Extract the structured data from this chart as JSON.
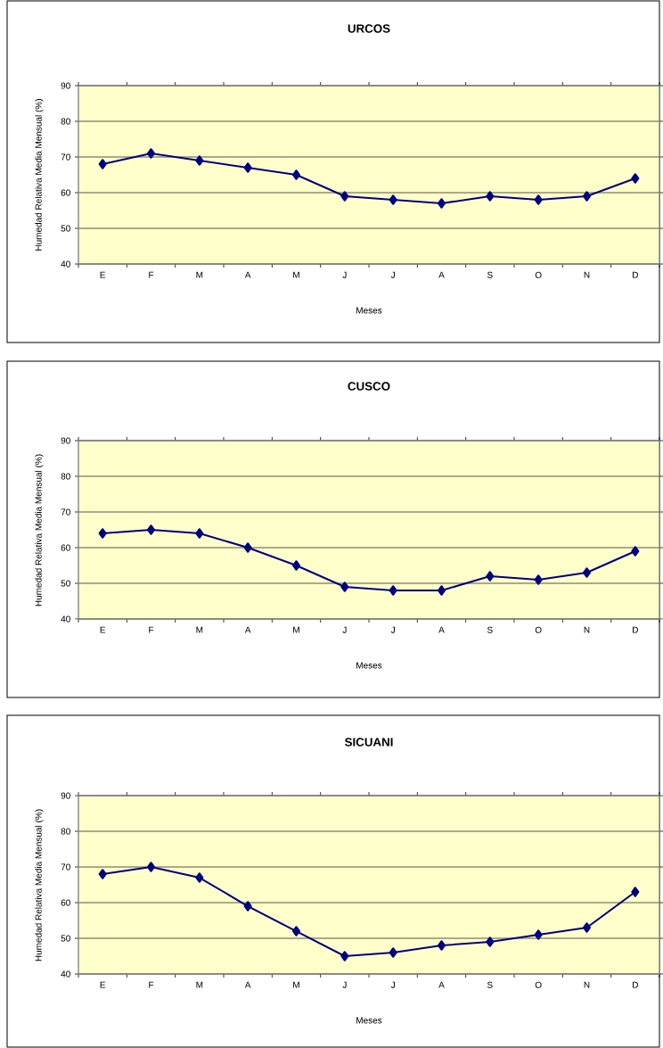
{
  "chart_data": [
    {
      "type": "line",
      "title": "URCOS",
      "xlabel": "Meses",
      "ylabel": "Humedad Relativa Media Mensual (%)",
      "categories": [
        "E",
        "F",
        "M",
        "A",
        "M",
        "J",
        "J",
        "A",
        "S",
        "O",
        "N",
        "D"
      ],
      "series": [
        {
          "color": "#000080",
          "values": [
            68,
            71,
            69,
            67,
            65,
            59,
            58,
            57,
            59,
            58,
            59,
            64
          ]
        }
      ],
      "ylim": [
        40,
        90
      ],
      "yticks": [
        40,
        50,
        60,
        70,
        80,
        90
      ],
      "grid": "y",
      "marker": "diamond"
    },
    {
      "type": "line",
      "title": "CUSCO",
      "xlabel": "Meses",
      "ylabel": "Humedad Relativa Media Mensual (%)",
      "categories": [
        "E",
        "F",
        "M",
        "A",
        "M",
        "J",
        "J",
        "A",
        "S",
        "O",
        "N",
        "D"
      ],
      "series": [
        {
          "color": "#000080",
          "values": [
            64,
            65,
            64,
            60,
            55,
            49,
            48,
            48,
            52,
            51,
            53,
            59
          ]
        }
      ],
      "ylim": [
        40,
        90
      ],
      "yticks": [
        40,
        50,
        60,
        70,
        80,
        90
      ],
      "grid": "y",
      "marker": "diamond"
    },
    {
      "type": "line",
      "title": "SICUANI",
      "xlabel": "Meses",
      "ylabel": "Humedad Relativa Media Mensual (%)",
      "categories": [
        "E",
        "F",
        "M",
        "A",
        "M",
        "J",
        "J",
        "A",
        "S",
        "O",
        "N",
        "D"
      ],
      "series": [
        {
          "color": "#000080",
          "values": [
            68,
            70,
            67,
            59,
            52,
            45,
            46,
            48,
            49,
            51,
            53,
            63
          ]
        }
      ],
      "ylim": [
        40,
        90
      ],
      "yticks": [
        40,
        50,
        60,
        70,
        80,
        90
      ],
      "grid": "y",
      "marker": "diamond"
    }
  ]
}
